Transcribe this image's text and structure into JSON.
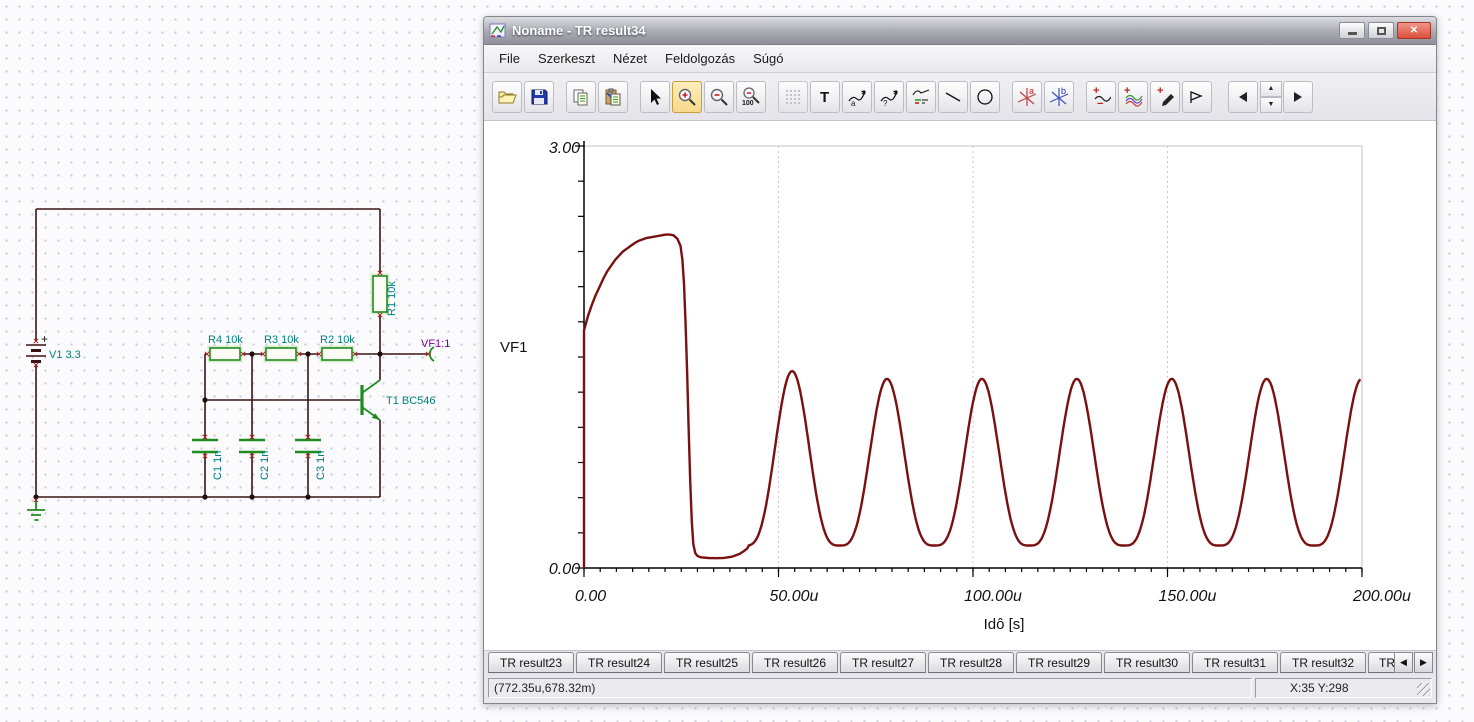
{
  "window": {
    "title": "Noname - TR result34",
    "titlebar_buttons": {
      "minimize": "minimize",
      "restore": "restore",
      "close": "✕"
    },
    "menu": [
      "File",
      "Szerkeszt",
      "Nézet",
      "Feldolgozás",
      "Súgó"
    ],
    "toolbar_buttons": [
      "open",
      "save",
      "copy",
      "paste",
      "pointer",
      "zoom-in",
      "zoom-out",
      "zoom-100",
      "grid",
      "text",
      "curve-cursor-a",
      "curve-cursor-query",
      "legend",
      "line",
      "ellipse",
      "cursor-a",
      "cursor-b",
      "add-remove-curve",
      "show-all-curves",
      "draw-pen",
      "marker",
      "scroll-left",
      "scroll-spinner",
      "scroll-right"
    ],
    "toolbar_active": "zoom-in",
    "icon_glyphs": {
      "text_tool": "T",
      "zoom_plus": "+",
      "zoom_minus": "−",
      "zoom_pct": "100",
      "cursor_a": "a",
      "cursor_b": "b",
      "curve_a": "a",
      "curve_q": "?",
      "nav_left": "◀",
      "nav_right": "▶",
      "nav_up": "▲",
      "nav_down": "▼"
    },
    "tabs": [
      "TR result23",
      "TR result24",
      "TR result25",
      "TR result26",
      "TR result27",
      "TR result28",
      "TR result29",
      "TR result30",
      "TR result31",
      "TR result32",
      "TR"
    ],
    "status": {
      "coords": "(772.35u,678.32m)",
      "xy": "X:35 Y:298"
    }
  },
  "schematic": {
    "components": {
      "v1": "V1 3.3",
      "v1_plus": "+",
      "r1": "R1 10k",
      "r2": "R2 10k",
      "r3": "R3 10k",
      "r4": "R4 10k",
      "c1": "C1 1n",
      "c2": "C2 1n",
      "c3": "C3 1n",
      "t1": "T1 BC546",
      "probe": "VF1:1"
    },
    "colors": {
      "wire": "#3a1414",
      "component": "#1f8c1f",
      "label": "#00807f",
      "probe_label": "#8000a0",
      "terminal_x": "#b22222"
    }
  },
  "chart_data": {
    "type": "line",
    "title": "TR result34",
    "xlabel": "Idô [s]",
    "ylabel": "VF1",
    "xlim_u": [
      0,
      200
    ],
    "ylim": [
      0,
      3
    ],
    "x_tick_labels": [
      "0.00",
      "50.00u",
      "100.00u",
      "150.00u",
      "200.00u"
    ],
    "x_major_ticks_u": [
      0,
      50,
      100,
      150,
      200
    ],
    "x_minor_divisions": 48,
    "y_tick_labels": [
      "0.00",
      "3.00"
    ],
    "y_minor_step": 0.25,
    "grid_x_u": [
      50,
      100,
      150
    ],
    "grid_style": "dashed",
    "legend_position": "left-axis",
    "series": [
      {
        "name": "VF1",
        "color": "#7a1010",
        "startup_samples_u_v": [
          [
            0,
            0
          ],
          [
            0,
            1.69
          ],
          [
            1,
            1.79
          ],
          [
            2,
            1.87
          ],
          [
            3,
            1.94
          ],
          [
            4,
            2.0
          ],
          [
            5,
            2.06
          ],
          [
            6,
            2.11
          ],
          [
            7,
            2.15
          ],
          [
            8,
            2.19
          ],
          [
            9,
            2.22
          ],
          [
            10,
            2.25
          ],
          [
            11,
            2.27
          ],
          [
            12,
            2.29
          ],
          [
            13,
            2.31
          ],
          [
            14,
            2.325
          ],
          [
            15,
            2.335
          ],
          [
            16,
            2.345
          ],
          [
            17,
            2.35
          ],
          [
            18,
            2.355
          ],
          [
            19,
            2.36
          ],
          [
            20,
            2.365
          ],
          [
            21,
            2.37
          ],
          [
            22,
            2.37
          ],
          [
            23,
            2.365
          ],
          [
            24,
            2.34
          ],
          [
            24.8,
            2.29
          ],
          [
            25.3,
            2.19
          ],
          [
            25.7,
            2.02
          ],
          [
            26.1,
            1.75
          ],
          [
            26.5,
            1.4
          ],
          [
            26.9,
            1.0
          ],
          [
            27.3,
            0.62
          ],
          [
            27.7,
            0.33
          ],
          [
            28.1,
            0.17
          ],
          [
            28.6,
            0.105
          ],
          [
            29.2,
            0.085
          ],
          [
            30,
            0.076
          ],
          [
            32,
            0.071
          ],
          [
            34,
            0.07
          ],
          [
            36,
            0.072
          ],
          [
            38,
            0.08
          ],
          [
            40,
            0.1
          ],
          [
            41,
            0.118
          ],
          [
            42,
            0.14
          ]
        ],
        "oscillation": {
          "t_start_u": 42.4,
          "t_end_u": 200,
          "first_peak_t_u": 53.5,
          "period_u": 24.4,
          "first_peak_v": 1.4,
          "steady_peak_v": 1.345,
          "trough_v": 0.16,
          "bump_power": 1.7
        }
      }
    ]
  }
}
